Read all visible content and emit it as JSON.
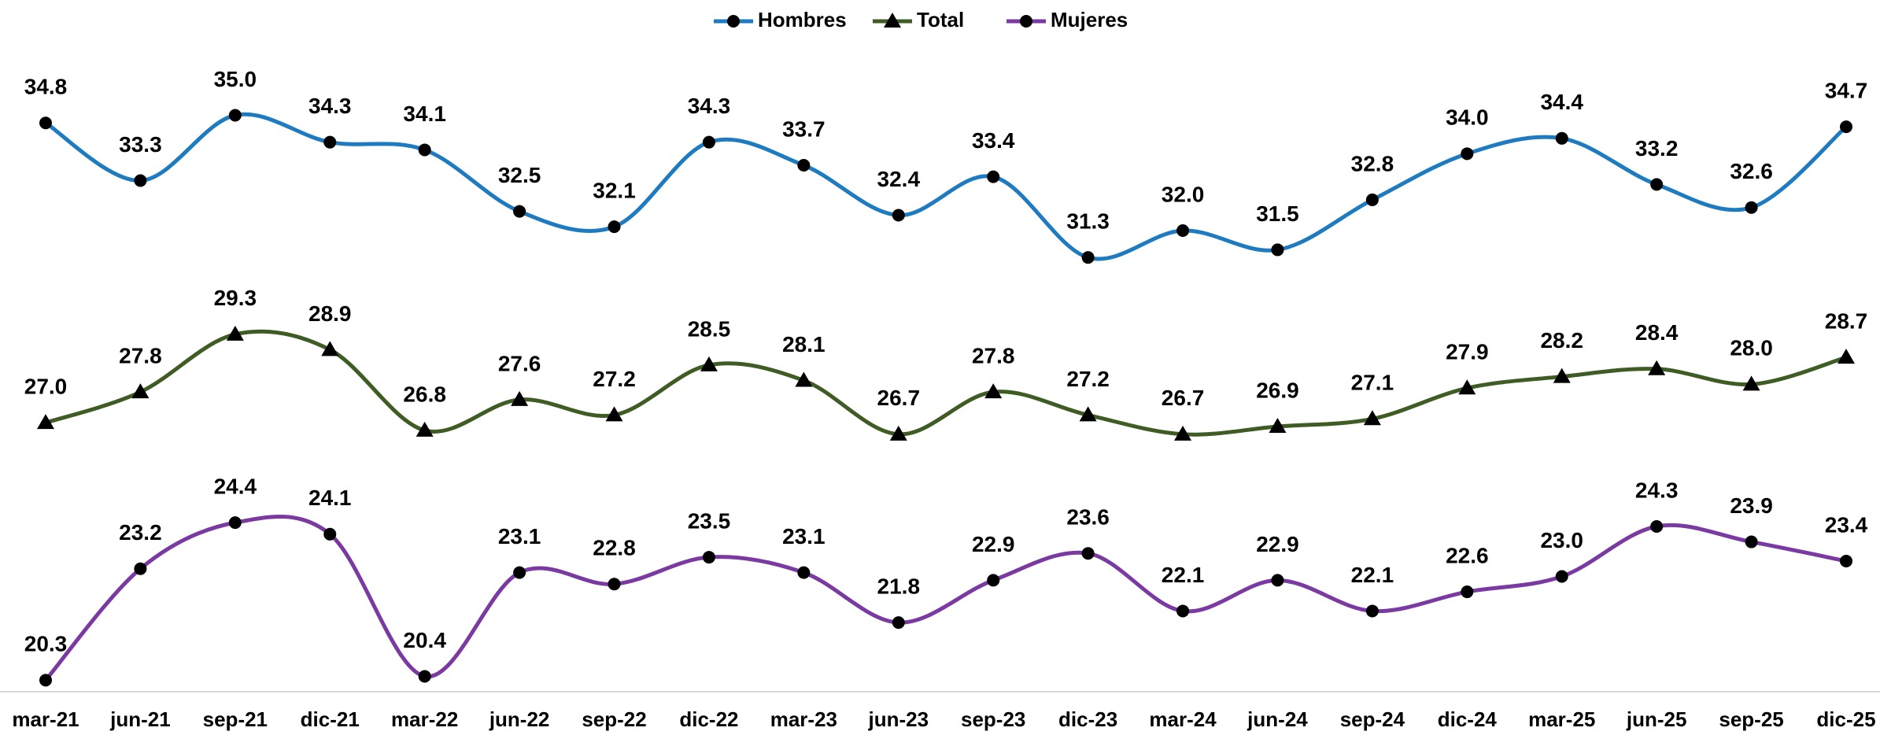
{
  "chart_data": {
    "type": "line",
    "categories": [
      "mar-21",
      "jun-21",
      "sep-21",
      "dic-21",
      "mar-22",
      "jun-22",
      "sep-22",
      "dic-22",
      "mar-23",
      "jun-23",
      "sep-23",
      "dic-23",
      "mar-24",
      "jun-24",
      "sep-24",
      "dic-24",
      "mar-25",
      "jun-25",
      "sep-25",
      "dic-25"
    ],
    "ylim": [
      20,
      38
    ],
    "series": [
      {
        "name": "Hombres",
        "color": "#1f7bc0",
        "marker": "circle",
        "values": [
          34.8,
          33.3,
          35.0,
          34.3,
          34.1,
          32.5,
          32.1,
          34.3,
          33.7,
          32.4,
          33.4,
          31.3,
          32.0,
          31.5,
          32.8,
          34.0,
          34.4,
          33.2,
          32.6,
          34.7
        ],
        "value_labels": [
          "34.8",
          "33.3",
          "35.0",
          "34.3",
          "34.1",
          "32.5",
          "32.1",
          "34.3",
          "33.7",
          "32.4",
          "33.4",
          "31.3",
          "32.0",
          "31.5",
          "32.8",
          "34.0",
          "34.4",
          "33.2",
          "32.6",
          "34.7"
        ]
      },
      {
        "name": "Total",
        "color": "#3e5c23",
        "marker": "triangle",
        "values": [
          27.0,
          27.8,
          29.3,
          28.9,
          26.8,
          27.6,
          27.2,
          28.5,
          28.1,
          26.7,
          27.8,
          27.2,
          26.7,
          26.9,
          27.1,
          27.9,
          28.2,
          28.4,
          28.0,
          28.7
        ],
        "value_labels": [
          "27.0",
          "27.8",
          "29.3",
          "28.9",
          "26.8",
          "27.6",
          "27.2",
          "28.5",
          "28.1",
          "26.7",
          "27.8",
          "27.2",
          "26.7",
          "26.9",
          "27.1",
          "27.9",
          "28.2",
          "28.4",
          "28.0",
          "28.7"
        ]
      },
      {
        "name": "Mujeres",
        "color": "#7a3aa2",
        "marker": "circle",
        "values": [
          20.3,
          23.2,
          24.4,
          24.1,
          20.4,
          23.1,
          22.8,
          23.5,
          23.1,
          21.8,
          22.9,
          23.6,
          22.1,
          22.9,
          22.1,
          22.6,
          23.0,
          24.3,
          23.9,
          23.4
        ],
        "value_labels": [
          "20.3",
          "23.2",
          "24.4",
          "24.1",
          "20.4",
          "23.1",
          "22.8",
          "23.5",
          "23.1",
          "21.8",
          "22.9",
          "23.6",
          "22.1",
          "22.9",
          "22.1",
          "22.6",
          "23.0",
          "24.3",
          "23.9",
          "23.4"
        ]
      }
    ],
    "legend": "top"
  }
}
